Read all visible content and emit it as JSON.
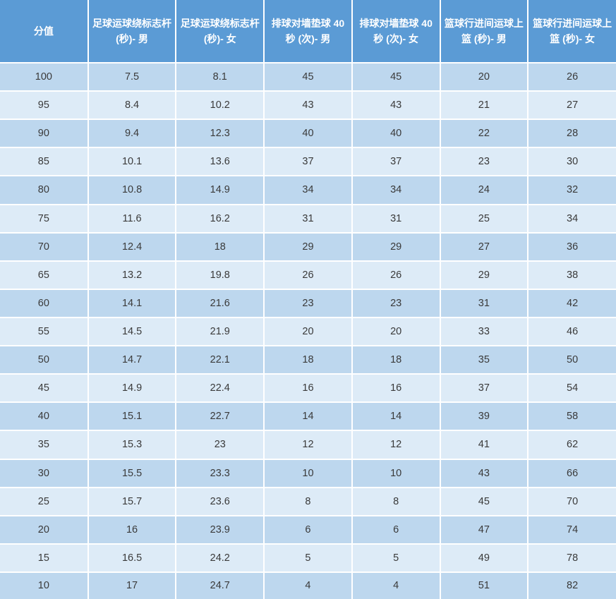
{
  "table": {
    "columns": [
      {
        "label": "分值"
      },
      {
        "label": "足球运球绕标志杆 (秒)- 男"
      },
      {
        "label": "足球运球绕标志杆 (秒)- 女"
      },
      {
        "label": "排球对墙垫球 40 秒 (次)- 男"
      },
      {
        "label": "排球对墙垫球 40 秒 (次)- 女"
      },
      {
        "label": "篮球行进间运球上篮 (秒)- 男"
      },
      {
        "label": "篮球行进间运球上篮 (秒)- 女"
      }
    ],
    "rows": [
      [
        "100",
        "7.5",
        "8.1",
        "45",
        "45",
        "20",
        "26"
      ],
      [
        "95",
        "8.4",
        "10.2",
        "43",
        "43",
        "21",
        "27"
      ],
      [
        "90",
        "9.4",
        "12.3",
        "40",
        "40",
        "22",
        "28"
      ],
      [
        "85",
        "10.1",
        "13.6",
        "37",
        "37",
        "23",
        "30"
      ],
      [
        "80",
        "10.8",
        "14.9",
        "34",
        "34",
        "24",
        "32"
      ],
      [
        "75",
        "11.6",
        "16.2",
        "31",
        "31",
        "25",
        "34"
      ],
      [
        "70",
        "12.4",
        "18",
        "29",
        "29",
        "27",
        "36"
      ],
      [
        "65",
        "13.2",
        "19.8",
        "26",
        "26",
        "29",
        "38"
      ],
      [
        "60",
        "14.1",
        "21.6",
        "23",
        "23",
        "31",
        "42"
      ],
      [
        "55",
        "14.5",
        "21.9",
        "20",
        "20",
        "33",
        "46"
      ],
      [
        "50",
        "14.7",
        "22.1",
        "18",
        "18",
        "35",
        "50"
      ],
      [
        "45",
        "14.9",
        "22.4",
        "16",
        "16",
        "37",
        "54"
      ],
      [
        "40",
        "15.1",
        "22.7",
        "14",
        "14",
        "39",
        "58"
      ],
      [
        "35",
        "15.3",
        "23",
        "12",
        "12",
        "41",
        "62"
      ],
      [
        "30",
        "15.5",
        "23.3",
        "10",
        "10",
        "43",
        "66"
      ],
      [
        "25",
        "15.7",
        "23.6",
        "8",
        "8",
        "45",
        "70"
      ],
      [
        "20",
        "16",
        "23.9",
        "6",
        "6",
        "47",
        "74"
      ],
      [
        "15",
        "16.5",
        "24.2",
        "5",
        "5",
        "49",
        "78"
      ],
      [
        "10",
        "17",
        "24.7",
        "4",
        "4",
        "51",
        "82"
      ]
    ]
  },
  "colors": {
    "header_bg": "#5B9BD5",
    "header_text": "#FFFFFF",
    "row_odd_bg": "#BDD7EE",
    "row_even_bg": "#DDEBF7",
    "cell_text": "#3A3A3A",
    "grid_line": "#FFFFFF"
  },
  "chart_data": {
    "type": "table",
    "title": "",
    "columns": [
      "分值",
      "足球运球绕标志杆 (秒)- 男",
      "足球运球绕标志杆 (秒)- 女",
      "排球对墙垫球 40 秒 (次)- 男",
      "排球对墙垫球 40 秒 (次)- 女",
      "篮球行进间运球上篮 (秒)- 男",
      "篮球行进间运球上篮 (秒)- 女"
    ],
    "scores": [
      100,
      95,
      90,
      85,
      80,
      75,
      70,
      65,
      60,
      55,
      50,
      45,
      40,
      35,
      30,
      25,
      20,
      15,
      10
    ],
    "series": [
      {
        "name": "足球运球绕标志杆 (秒)- 男",
        "values": [
          7.5,
          8.4,
          9.4,
          10.1,
          10.8,
          11.6,
          12.4,
          13.2,
          14.1,
          14.5,
          14.7,
          14.9,
          15.1,
          15.3,
          15.5,
          15.7,
          16,
          16.5,
          17
        ]
      },
      {
        "name": "足球运球绕标志杆 (秒)- 女",
        "values": [
          8.1,
          10.2,
          12.3,
          13.6,
          14.9,
          16.2,
          18,
          19.8,
          21.6,
          21.9,
          22.1,
          22.4,
          22.7,
          23,
          23.3,
          23.6,
          23.9,
          24.2,
          24.7
        ]
      },
      {
        "name": "排球对墙垫球 40 秒 (次)- 男",
        "values": [
          45,
          43,
          40,
          37,
          34,
          31,
          29,
          26,
          23,
          20,
          18,
          16,
          14,
          12,
          10,
          8,
          6,
          5,
          4
        ]
      },
      {
        "name": "排球对墙垫球 40 秒 (次)- 女",
        "values": [
          45,
          43,
          40,
          37,
          34,
          31,
          29,
          26,
          23,
          20,
          18,
          16,
          14,
          12,
          10,
          8,
          6,
          5,
          4
        ]
      },
      {
        "name": "篮球行进间运球上篮 (秒)- 男",
        "values": [
          20,
          21,
          22,
          23,
          24,
          25,
          27,
          29,
          31,
          33,
          35,
          37,
          39,
          41,
          43,
          45,
          47,
          49,
          51
        ]
      },
      {
        "name": "篮球行进间运球上篮 (秒)- 女",
        "values": [
          26,
          27,
          28,
          30,
          32,
          34,
          36,
          38,
          42,
          46,
          50,
          54,
          58,
          62,
          66,
          70,
          74,
          78,
          82
        ]
      }
    ],
    "layout": {
      "header_row": true,
      "alternating_row_shading": true,
      "grid": true,
      "legend_position": "none"
    }
  }
}
